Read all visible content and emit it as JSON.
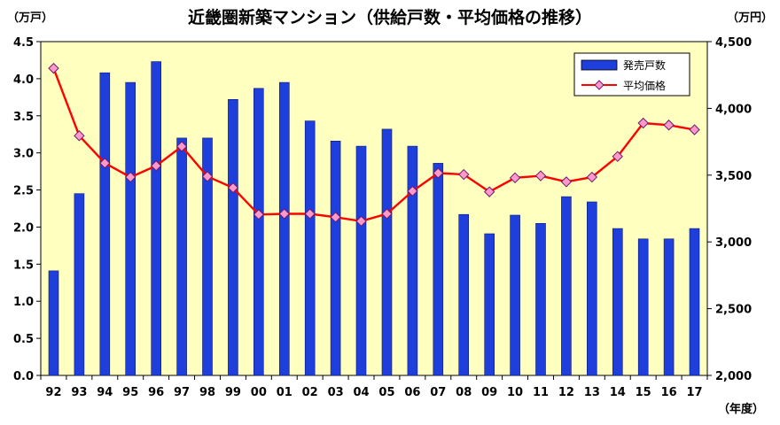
{
  "chart_data": {
    "type": "bar",
    "title": "近畿圏新築マンション（供給戸数・平均価格の推移）",
    "left_unit": "（万戸）",
    "right_unit": "（万円）",
    "x_unit": "（年度）",
    "categories": [
      "92",
      "93",
      "94",
      "95",
      "96",
      "97",
      "98",
      "99",
      "00",
      "01",
      "02",
      "03",
      "04",
      "05",
      "06",
      "07",
      "08",
      "09",
      "10",
      "11",
      "12",
      "13",
      "14",
      "15",
      "16",
      "17"
    ],
    "y_left": {
      "min": 0,
      "max": 4.5,
      "ticks": [
        "0.0",
        "0.5",
        "1.0",
        "1.5",
        "2.0",
        "2.5",
        "3.0",
        "3.5",
        "4.0",
        "4.5"
      ]
    },
    "y_right": {
      "min": 2000,
      "max": 4500,
      "ticks": [
        "2,000",
        "2,500",
        "3,000",
        "3,500",
        "4,000",
        "4,500"
      ]
    },
    "grid": false,
    "plot_background": "#ffffc0",
    "legend_position": "top-right",
    "series": [
      {
        "name": "発売戸数",
        "type": "bar",
        "axis": "left",
        "color": "#1f3fdc",
        "values": [
          1.41,
          2.45,
          4.08,
          3.95,
          4.23,
          3.2,
          3.2,
          3.72,
          3.87,
          3.95,
          3.43,
          3.16,
          3.09,
          3.32,
          3.09,
          2.86,
          2.17,
          1.91,
          2.16,
          2.05,
          2.41,
          2.34,
          1.98,
          1.84,
          1.84,
          1.98
        ]
      },
      {
        "name": "平均価格",
        "type": "line",
        "axis": "right",
        "color": "#ff0000",
        "marker_color": "#ff99cc",
        "values": [
          4300,
          3795,
          3590,
          3485,
          3570,
          3715,
          3490,
          3405,
          3205,
          3210,
          3210,
          3185,
          3155,
          3210,
          3380,
          3515,
          3505,
          3375,
          3480,
          3495,
          3450,
          3485,
          3640,
          3890,
          3875,
          3840
        ]
      }
    ]
  }
}
